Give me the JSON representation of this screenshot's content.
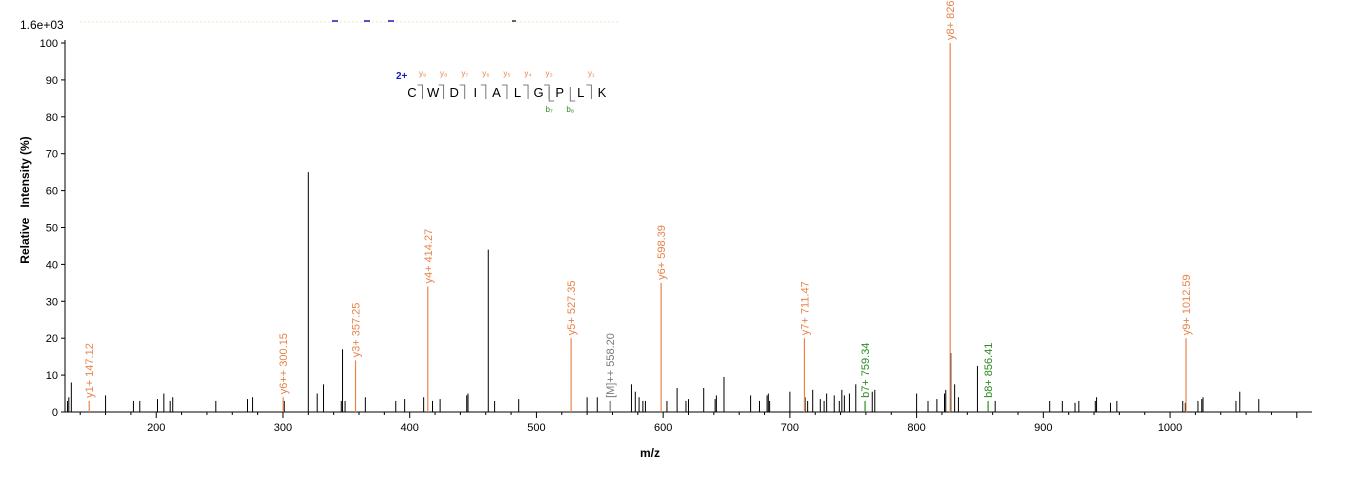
{
  "chart_data": {
    "type": "bar",
    "title": "",
    "intensity_max_label": "1.6e+03",
    "xlabel": "m/z",
    "ylabel": "Relative   Intensity (%)",
    "xlim": [
      128,
      1112
    ],
    "ylim": [
      0,
      100
    ],
    "x_ticks": [
      200,
      300,
      400,
      500,
      600,
      700,
      800,
      900,
      1000
    ],
    "y_ticks": [
      0,
      10,
      20,
      30,
      40,
      50,
      60,
      70,
      80,
      90,
      100
    ],
    "colors": {
      "y_ion": "#e8834a",
      "b_ion": "#2e8b22",
      "precursor": "#7a7a7a",
      "unassigned": "#000000",
      "charge": "#1c1cb8",
      "axis": "#000000"
    },
    "peptide": {
      "charge": "2+",
      "residues": [
        "C",
        "W",
        "D",
        "I",
        "A",
        "L",
        "G",
        "P",
        "L",
        "K"
      ],
      "y_labels": [
        "y₉",
        "y₈",
        "y₇",
        "y₆",
        "y₅",
        "y₄",
        "y₃",
        "",
        "y₁"
      ],
      "b_labels": [
        "",
        "",
        "",
        "",
        "",
        "",
        "b₇",
        "b₈",
        ""
      ]
    },
    "annotated_peaks": [
      {
        "x": 147.12,
        "y": 3,
        "label": "y1+ 147.12",
        "ion": "y"
      },
      {
        "x": 300.15,
        "y": 4,
        "label": "y6++ 300.15",
        "ion": "y"
      },
      {
        "x": 357.25,
        "y": 14,
        "label": "y3+ 357.25",
        "ion": "y"
      },
      {
        "x": 414.27,
        "y": 34,
        "label": "y4+ 414.27",
        "ion": "y"
      },
      {
        "x": 527.35,
        "y": 20,
        "label": "y5+ 527.35",
        "ion": "y"
      },
      {
        "x": 558.2,
        "y": 3,
        "label": "[M]++ 558.20",
        "ion": "precursor"
      },
      {
        "x": 598.39,
        "y": 35,
        "label": "y6+ 598.39",
        "ion": "y"
      },
      {
        "x": 711.47,
        "y": 20,
        "label": "y7+ 711.47",
        "ion": "y"
      },
      {
        "x": 759.34,
        "y": 3,
        "label": "b7+ 759.34",
        "ion": "b"
      },
      {
        "x": 826.5,
        "y": 100,
        "label": "y8+ 826.50",
        "ion": "y"
      },
      {
        "x": 856.41,
        "y": 3,
        "label": "b8+ 856.41",
        "ion": "b"
      },
      {
        "x": 1012.59,
        "y": 20,
        "label": "y9+ 1012.59",
        "ion": "y"
      }
    ],
    "unassigned_peaks": [
      [
        130,
        3
      ],
      [
        131,
        4
      ],
      [
        133,
        8
      ],
      [
        160,
        4.5
      ],
      [
        182,
        3
      ],
      [
        187,
        3
      ],
      [
        201,
        3.5
      ],
      [
        206,
        5
      ],
      [
        211,
        3
      ],
      [
        213,
        4
      ],
      [
        247,
        3
      ],
      [
        272,
        3.5
      ],
      [
        276,
        4
      ],
      [
        301,
        3
      ],
      [
        320,
        65
      ],
      [
        327,
        5
      ],
      [
        332,
        7.5
      ],
      [
        346,
        3
      ],
      [
        347,
        17
      ],
      [
        349,
        3
      ],
      [
        365,
        4
      ],
      [
        389,
        3
      ],
      [
        396,
        3.5
      ],
      [
        411,
        4
      ],
      [
        418,
        3
      ],
      [
        424,
        3.5
      ],
      [
        445,
        4.5
      ],
      [
        446,
        5
      ],
      [
        462,
        44
      ],
      [
        467,
        3
      ],
      [
        486,
        3.5
      ],
      [
        540,
        4
      ],
      [
        548,
        4
      ],
      [
        575,
        7.5
      ],
      [
        578,
        5.5
      ],
      [
        581,
        4
      ],
      [
        584,
        3
      ],
      [
        586,
        3
      ],
      [
        603,
        3
      ],
      [
        611,
        6.5
      ],
      [
        618,
        3
      ],
      [
        620,
        3.5
      ],
      [
        632,
        6.5
      ],
      [
        641,
        3.5
      ],
      [
        642,
        4.5
      ],
      [
        648,
        9.5
      ],
      [
        669,
        4.5
      ],
      [
        676,
        3
      ],
      [
        682,
        4.5
      ],
      [
        683,
        5
      ],
      [
        684,
        3
      ],
      [
        700,
        5.5
      ],
      [
        712,
        4
      ],
      [
        714,
        3
      ],
      [
        718,
        6
      ],
      [
        724,
        3.5
      ],
      [
        727,
        3
      ],
      [
        729,
        5
      ],
      [
        735,
        4.5
      ],
      [
        739,
        3
      ],
      [
        741,
        6
      ],
      [
        743,
        4.5
      ],
      [
        747,
        5
      ],
      [
        752,
        7.5
      ],
      [
        765,
        5.5
      ],
      [
        767,
        6
      ],
      [
        800,
        5
      ],
      [
        809,
        3
      ],
      [
        816,
        3.5
      ],
      [
        822,
        5
      ],
      [
        823,
        6
      ],
      [
        827,
        16
      ],
      [
        830,
        7.5
      ],
      [
        833,
        4
      ],
      [
        848,
        12.5
      ],
      [
        862,
        3
      ],
      [
        905,
        3
      ],
      [
        915,
        3
      ],
      [
        925,
        2.5
      ],
      [
        928,
        3
      ],
      [
        941,
        3
      ],
      [
        942,
        4
      ],
      [
        953,
        2.5
      ],
      [
        958,
        3
      ],
      [
        1010,
        3
      ],
      [
        1012,
        2.5
      ],
      [
        1022,
        3
      ],
      [
        1025,
        3.5
      ],
      [
        1026,
        4
      ],
      [
        1052,
        3
      ],
      [
        1055,
        5.5
      ],
      [
        1070,
        3.5
      ]
    ]
  }
}
